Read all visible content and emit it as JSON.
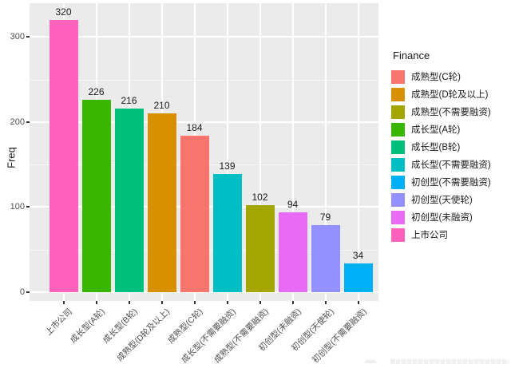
{
  "chart_data": {
    "type": "bar",
    "title": "",
    "xlabel": "",
    "ylabel": "Freq",
    "legend_title": "Finance",
    "legend_position": "right",
    "y_ticks": [
      0,
      100,
      200,
      300
    ],
    "ylim": [
      0,
      344
    ],
    "grid": "white major+minor gridlines on gray panel",
    "panel_bg": "#EBEBEB",
    "categories": [
      "上市公司",
      "成长型(A轮)",
      "成长型(B轮)",
      "成熟型(D轮及以上)",
      "成熟型(C轮)",
      "成长型(不需要融资)",
      "成熟型(不需要融资)",
      "初创型(未融资)",
      "初创型(天使轮)",
      "初创型(不需要融资)"
    ],
    "values": [
      320,
      226,
      216,
      210,
      184,
      139,
      102,
      94,
      79,
      34
    ],
    "bars": [
      {
        "label": "上市公司",
        "value": 320,
        "color": "#FF62BC"
      },
      {
        "label": "成长型(A轮)",
        "value": 226,
        "color": "#39B600"
      },
      {
        "label": "成长型(B轮)",
        "value": 216,
        "color": "#00BF7D"
      },
      {
        "label": "成熟型(D轮及以上)",
        "value": 210,
        "color": "#D89000"
      },
      {
        "label": "成熟型(C轮)",
        "value": 184,
        "color": "#F8766D"
      },
      {
        "label": "成长型(不需要融资)",
        "value": 139,
        "color": "#00BFC4"
      },
      {
        "label": "成熟型(不需要融资)",
        "value": 102,
        "color": "#A3A500"
      },
      {
        "label": "初创型(未融资)",
        "value": 94,
        "color": "#E76BF3"
      },
      {
        "label": "初创型(天使轮)",
        "value": 79,
        "color": "#9590FF"
      },
      {
        "label": "初创型(不需要融资)",
        "value": 34,
        "color": "#00B0F6"
      }
    ],
    "legend_items": [
      {
        "label": "成熟型(C轮)",
        "color": "#F8766D"
      },
      {
        "label": "成熟型(D轮及以上)",
        "color": "#D89000"
      },
      {
        "label": "成熟型(不需要融资)",
        "color": "#A3A500"
      },
      {
        "label": "成长型(A轮)",
        "color": "#39B600"
      },
      {
        "label": "成长型(B轮)",
        "color": "#00BF7D"
      },
      {
        "label": "成长型(不需要融资)",
        "color": "#00BFC4"
      },
      {
        "label": "初创型(不需要融资)",
        "color": "#00B0F6"
      },
      {
        "label": "初创型(天使轮)",
        "color": "#9590FF"
      },
      {
        "label": "初创型(未融资)",
        "color": "#E76BF3"
      },
      {
        "label": "上市公司",
        "color": "#FF62BC"
      }
    ],
    "colors": {
      "panel_background": "#EBEBEB",
      "gridline": "#FFFFFF",
      "axis_text": "#4D4D4D",
      "value_label_text": "#1A1A1A"
    }
  }
}
